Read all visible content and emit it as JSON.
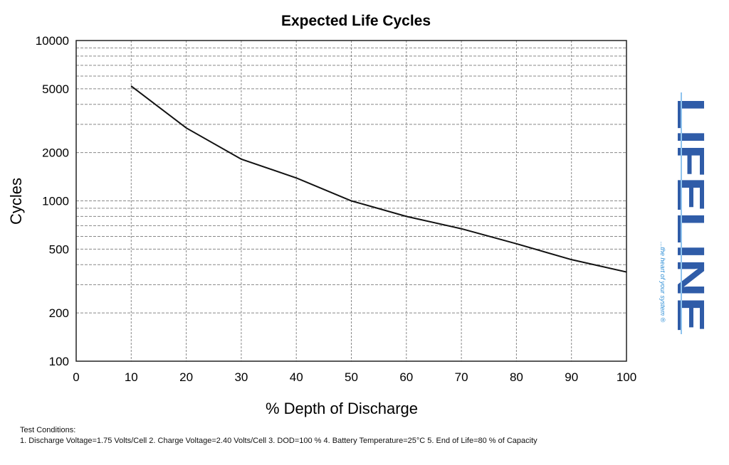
{
  "chart_data": {
    "type": "line",
    "title": "Expected Life Cycles",
    "xlabel": "% Depth of Discharge",
    "ylabel": "Cycles",
    "xlim": [
      0,
      100
    ],
    "ylim": [
      100,
      10000
    ],
    "yscale": "log",
    "grid": true,
    "x_ticks": [
      "0",
      "10",
      "20",
      "30",
      "40",
      "50",
      "60",
      "70",
      "80",
      "90",
      "100"
    ],
    "y_ticks": [
      {
        "value": 10000,
        "label": "10000"
      },
      {
        "value": 5000,
        "label": "5000"
      },
      {
        "value": 2000,
        "label": "2000"
      },
      {
        "value": 1000,
        "label": "1000"
      },
      {
        "value": 500,
        "label": "500"
      },
      {
        "value": 200,
        "label": "200"
      },
      {
        "value": 100,
        "label": "100"
      }
    ],
    "series": [
      {
        "x": [
          10,
          20,
          30,
          40,
          50,
          60,
          70,
          80,
          90,
          100
        ],
        "y": [
          5200,
          2850,
          1820,
          1390,
          1000,
          800,
          670,
          540,
          430,
          360
        ],
        "color": "#111111"
      }
    ]
  },
  "test_conditions": {
    "heading": "Test Conditions:",
    "text": "1. Discharge Voltage=1.75 Volts/Cell  2. Charge Voltage=2.40 Volts/Cell  3. DOD=100 %  4. Battery Temperature=25°C  5. End of Life=80 % of Capacity"
  },
  "logo": {
    "text": "LIFELINE",
    "tagline": "...the heart of your system ®",
    "color": "#2f5ca8"
  }
}
